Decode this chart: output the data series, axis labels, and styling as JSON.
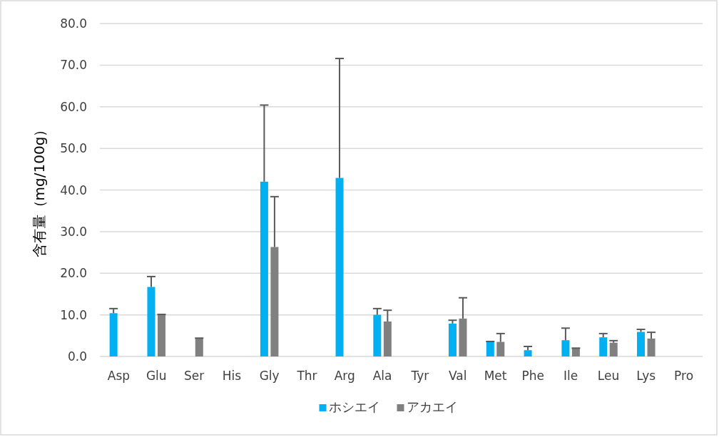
{
  "chart_data": {
    "type": "bar",
    "ylabel": "含有量（mg/100g）",
    "categories": [
      "Asp",
      "Glu",
      "Ser",
      "His",
      "Gly",
      "Thr",
      "Arg",
      "Ala",
      "Tyr",
      "Val",
      "Met",
      "Phe",
      "Ile",
      "Leu",
      "Lys",
      "Pro"
    ],
    "series": [
      {
        "name": "ホシエイ",
        "color": "#00b0f0",
        "values": [
          10.4,
          16.7,
          null,
          null,
          42.0,
          null,
          42.9,
          10.0,
          null,
          7.9,
          3.5,
          1.5,
          3.9,
          4.6,
          5.9,
          null
        ],
        "errors": [
          [
            10.4,
            11.5
          ],
          [
            16.7,
            19.2
          ],
          null,
          null,
          [
            42.0,
            60.4
          ],
          null,
          [
            42.9,
            71.6
          ],
          [
            10.0,
            11.5
          ],
          null,
          [
            7.9,
            8.7
          ],
          [
            3.5,
            3.6
          ],
          [
            1.5,
            2.4
          ],
          [
            3.9,
            6.8
          ],
          [
            4.6,
            5.5
          ],
          [
            5.9,
            6.5
          ],
          null
        ]
      },
      {
        "name": "アカエイ",
        "color": "#808080",
        "values": [
          null,
          10.0,
          4.3,
          null,
          26.3,
          null,
          null,
          8.4,
          null,
          9.1,
          3.5,
          null,
          1.9,
          3.3,
          4.3,
          null
        ],
        "errors": [
          null,
          [
            10.0,
            10.1
          ],
          [
            4.3,
            4.4
          ],
          null,
          [
            26.3,
            38.4
          ],
          null,
          null,
          [
            8.4,
            11.1
          ],
          null,
          [
            9.1,
            14.1
          ],
          [
            3.5,
            5.5
          ],
          null,
          [
            1.9,
            2.0
          ],
          [
            3.3,
            3.8
          ],
          [
            4.3,
            5.8
          ],
          null
        ]
      }
    ],
    "ylim": [
      0,
      80
    ],
    "yticks": [
      {
        "value": 0,
        "label": "0.0"
      },
      {
        "value": 10,
        "label": "10.0"
      },
      {
        "value": 20,
        "label": "20.0"
      },
      {
        "value": 30,
        "label": "30.0"
      },
      {
        "value": 40,
        "label": "40.0"
      },
      {
        "value": 50,
        "label": "50.0"
      },
      {
        "value": 60,
        "label": "60.0"
      },
      {
        "value": 70,
        "label": "70.0"
      },
      {
        "value": 80,
        "label": "80.0"
      }
    ],
    "grid": "y",
    "legend": "bottom"
  }
}
